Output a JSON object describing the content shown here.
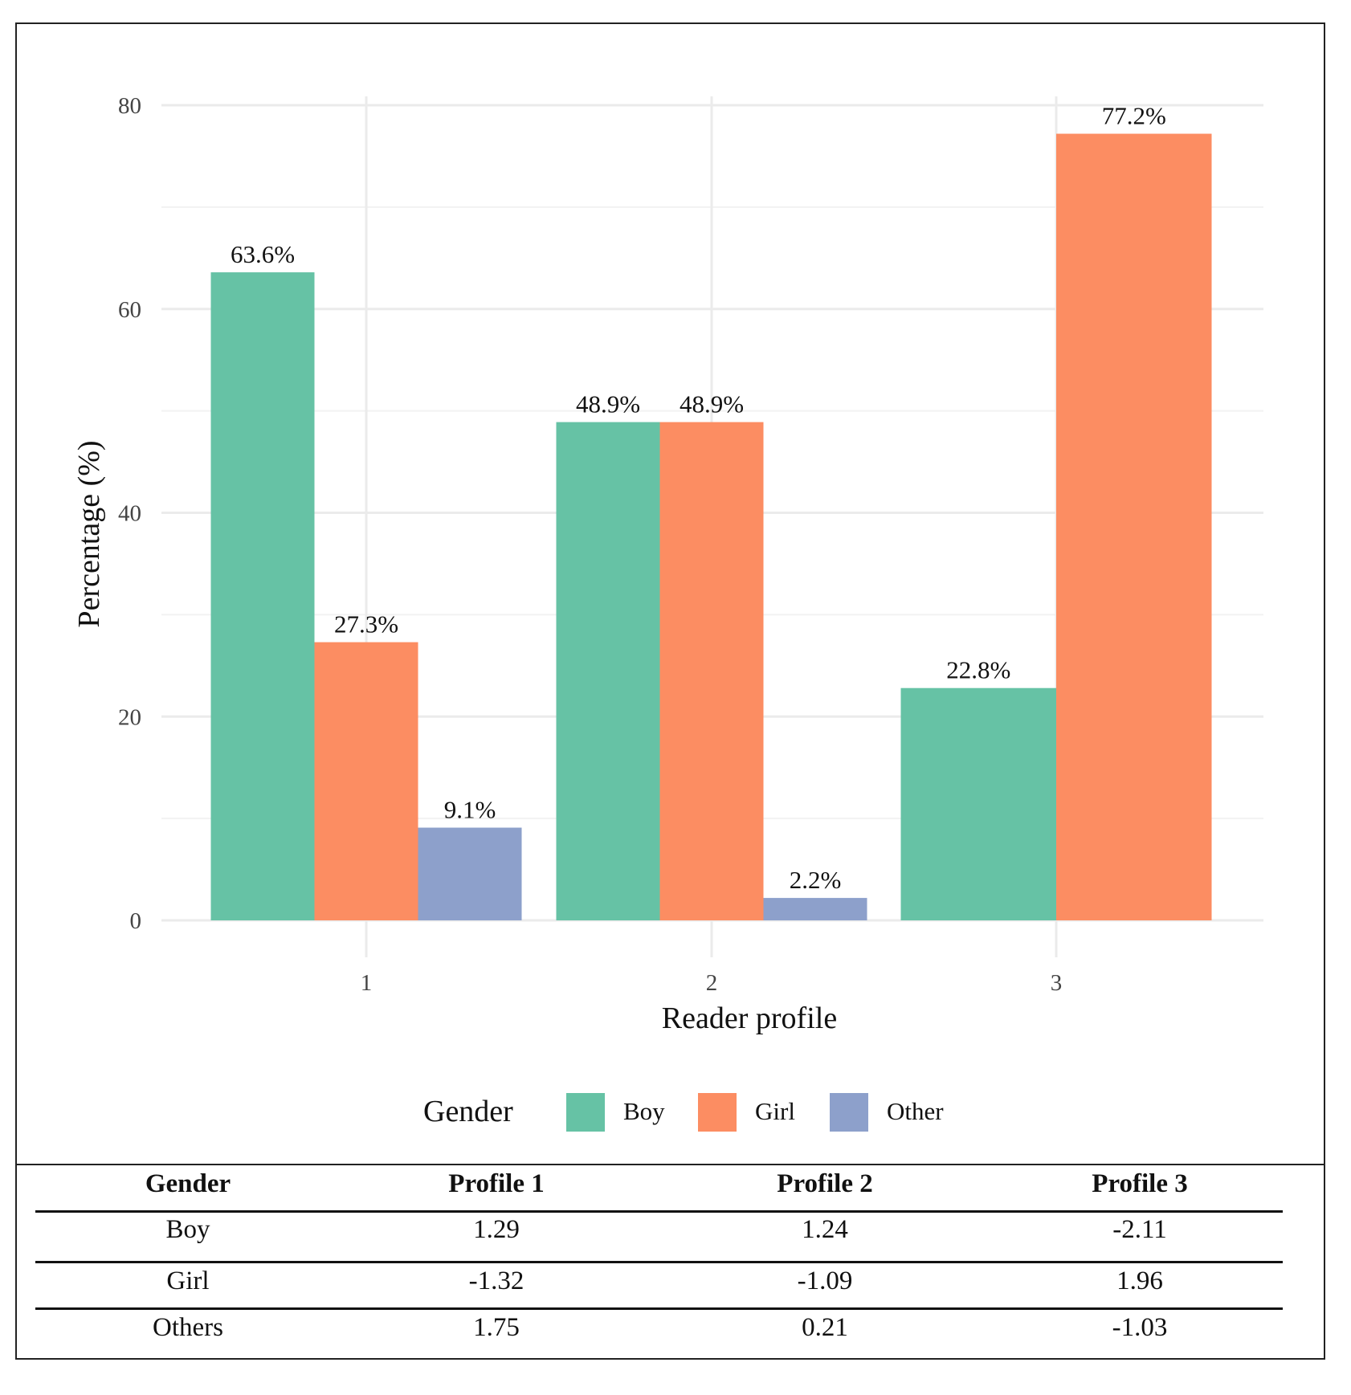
{
  "chart_data": {
    "type": "bar",
    "xlabel": "Reader profile",
    "ylabel": "Percentage (%)",
    "categories": [
      "1",
      "2",
      "3"
    ],
    "ylim": [
      0,
      80
    ],
    "yticks": [
      0,
      20,
      40,
      60,
      80
    ],
    "grid": true,
    "legend": {
      "title": "Gender",
      "placement": "bottom"
    },
    "series": [
      {
        "name": "Boy",
        "color": "#66c2a5",
        "values": [
          63.6,
          48.9,
          22.8
        ],
        "labels": [
          "63.6%",
          "48.9%",
          "22.8%"
        ]
      },
      {
        "name": "Girl",
        "color": "#fc8d62",
        "values": [
          27.3,
          48.9,
          77.2
        ],
        "labels": [
          "27.3%",
          "48.9%",
          "77.2%"
        ]
      },
      {
        "name": "Other",
        "color": "#8da0cb",
        "values": [
          9.1,
          2.2,
          null
        ],
        "labels": [
          "9.1%",
          "2.2%",
          null
        ]
      }
    ]
  },
  "table": {
    "headers": [
      "Gender",
      "Profile 1",
      "Profile 2",
      "Profile 3"
    ],
    "rows": [
      [
        "Boy",
        "1.29",
        "1.24",
        "-2.11"
      ],
      [
        "Girl",
        "-1.32",
        "-1.09",
        "1.96"
      ],
      [
        "Others",
        "1.75",
        "0.21",
        "-1.03"
      ]
    ]
  }
}
